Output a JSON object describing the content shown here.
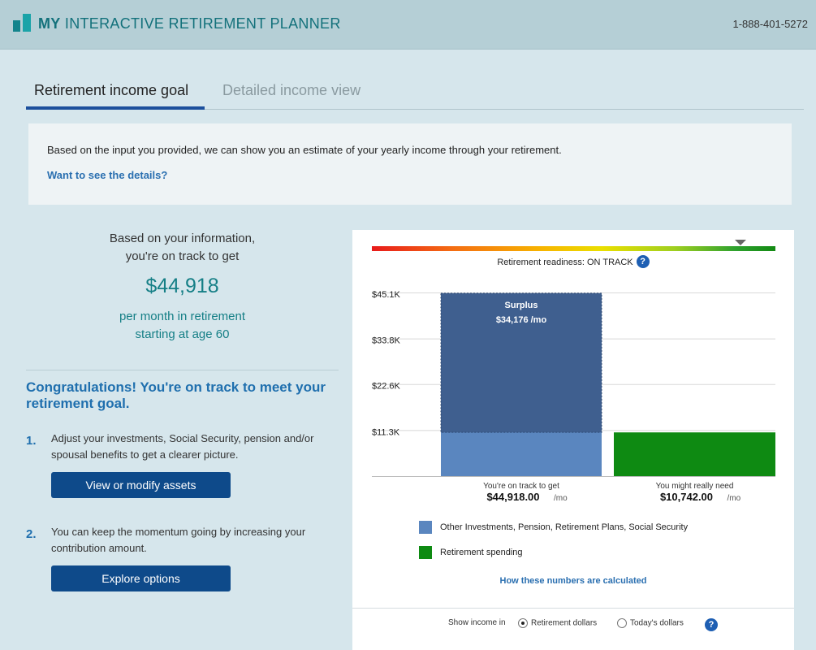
{
  "header": {
    "title_bold": "MY",
    "title_rest": " INTERACTIVE RETIREMENT PLANNER",
    "phone": "1-888-401-5272"
  },
  "tabs": [
    {
      "label": "Retirement income goal",
      "active": true
    },
    {
      "label": "Detailed income view",
      "active": false
    }
  ],
  "info": {
    "text": "Based on the input you provided, we can show you an estimate of your yearly income through your retirement.",
    "link": "Want to see the details?"
  },
  "summary": {
    "line1": "Based on your information,",
    "line2": "you're on track to get",
    "amount": "$44,918",
    "sub1": "per month in retirement",
    "sub2": "starting at age 60"
  },
  "congrats": "Congratulations! You're on track to meet your retirement goal.",
  "steps": [
    {
      "num": "1.",
      "text": "Adjust your investments, Social Security, pension and/or spousal benefits to get a clearer picture.",
      "button": "View or modify assets"
    },
    {
      "num": "2.",
      "text": "You can keep the momentum going by increasing your contribution amount.",
      "button": "Explore options"
    }
  ],
  "readiness": {
    "label": "Retirement readiness: ON TRACK",
    "help": "?"
  },
  "chart_data": {
    "type": "bar",
    "yticks": [
      "$45.1K",
      "$33.8K",
      "$22.6K",
      "$11.3K"
    ],
    "ytick_values": [
      45100,
      33800,
      22600,
      11300
    ],
    "ylim": [
      0,
      45100
    ],
    "bars": [
      {
        "category": "You're on track to get",
        "value": 44918,
        "value_label": "$44,918.00",
        "unit": "/mo",
        "color": "#5a86bf",
        "surplus": 34176
      },
      {
        "category": "You might really need",
        "value": 10742,
        "value_label": "$10,742.00",
        "unit": "/mo",
        "color": "#0e8a12"
      }
    ],
    "surplus_label": "Surplus",
    "surplus_value": "$34,176 /mo",
    "surplus_color": "#3f5f8f",
    "legend": [
      {
        "label": "Other Investments, Pension, Retirement Plans, Social Security",
        "color": "#5a86bf"
      },
      {
        "label": "Retirement spending",
        "color": "#0e8a12"
      }
    ]
  },
  "calc_link": "How these numbers are calculated",
  "income_toggle": {
    "label": "Show income in",
    "options": [
      {
        "label": "Retirement dollars",
        "checked": true
      },
      {
        "label": "Today's dollars",
        "checked": false
      }
    ],
    "help": "?"
  }
}
